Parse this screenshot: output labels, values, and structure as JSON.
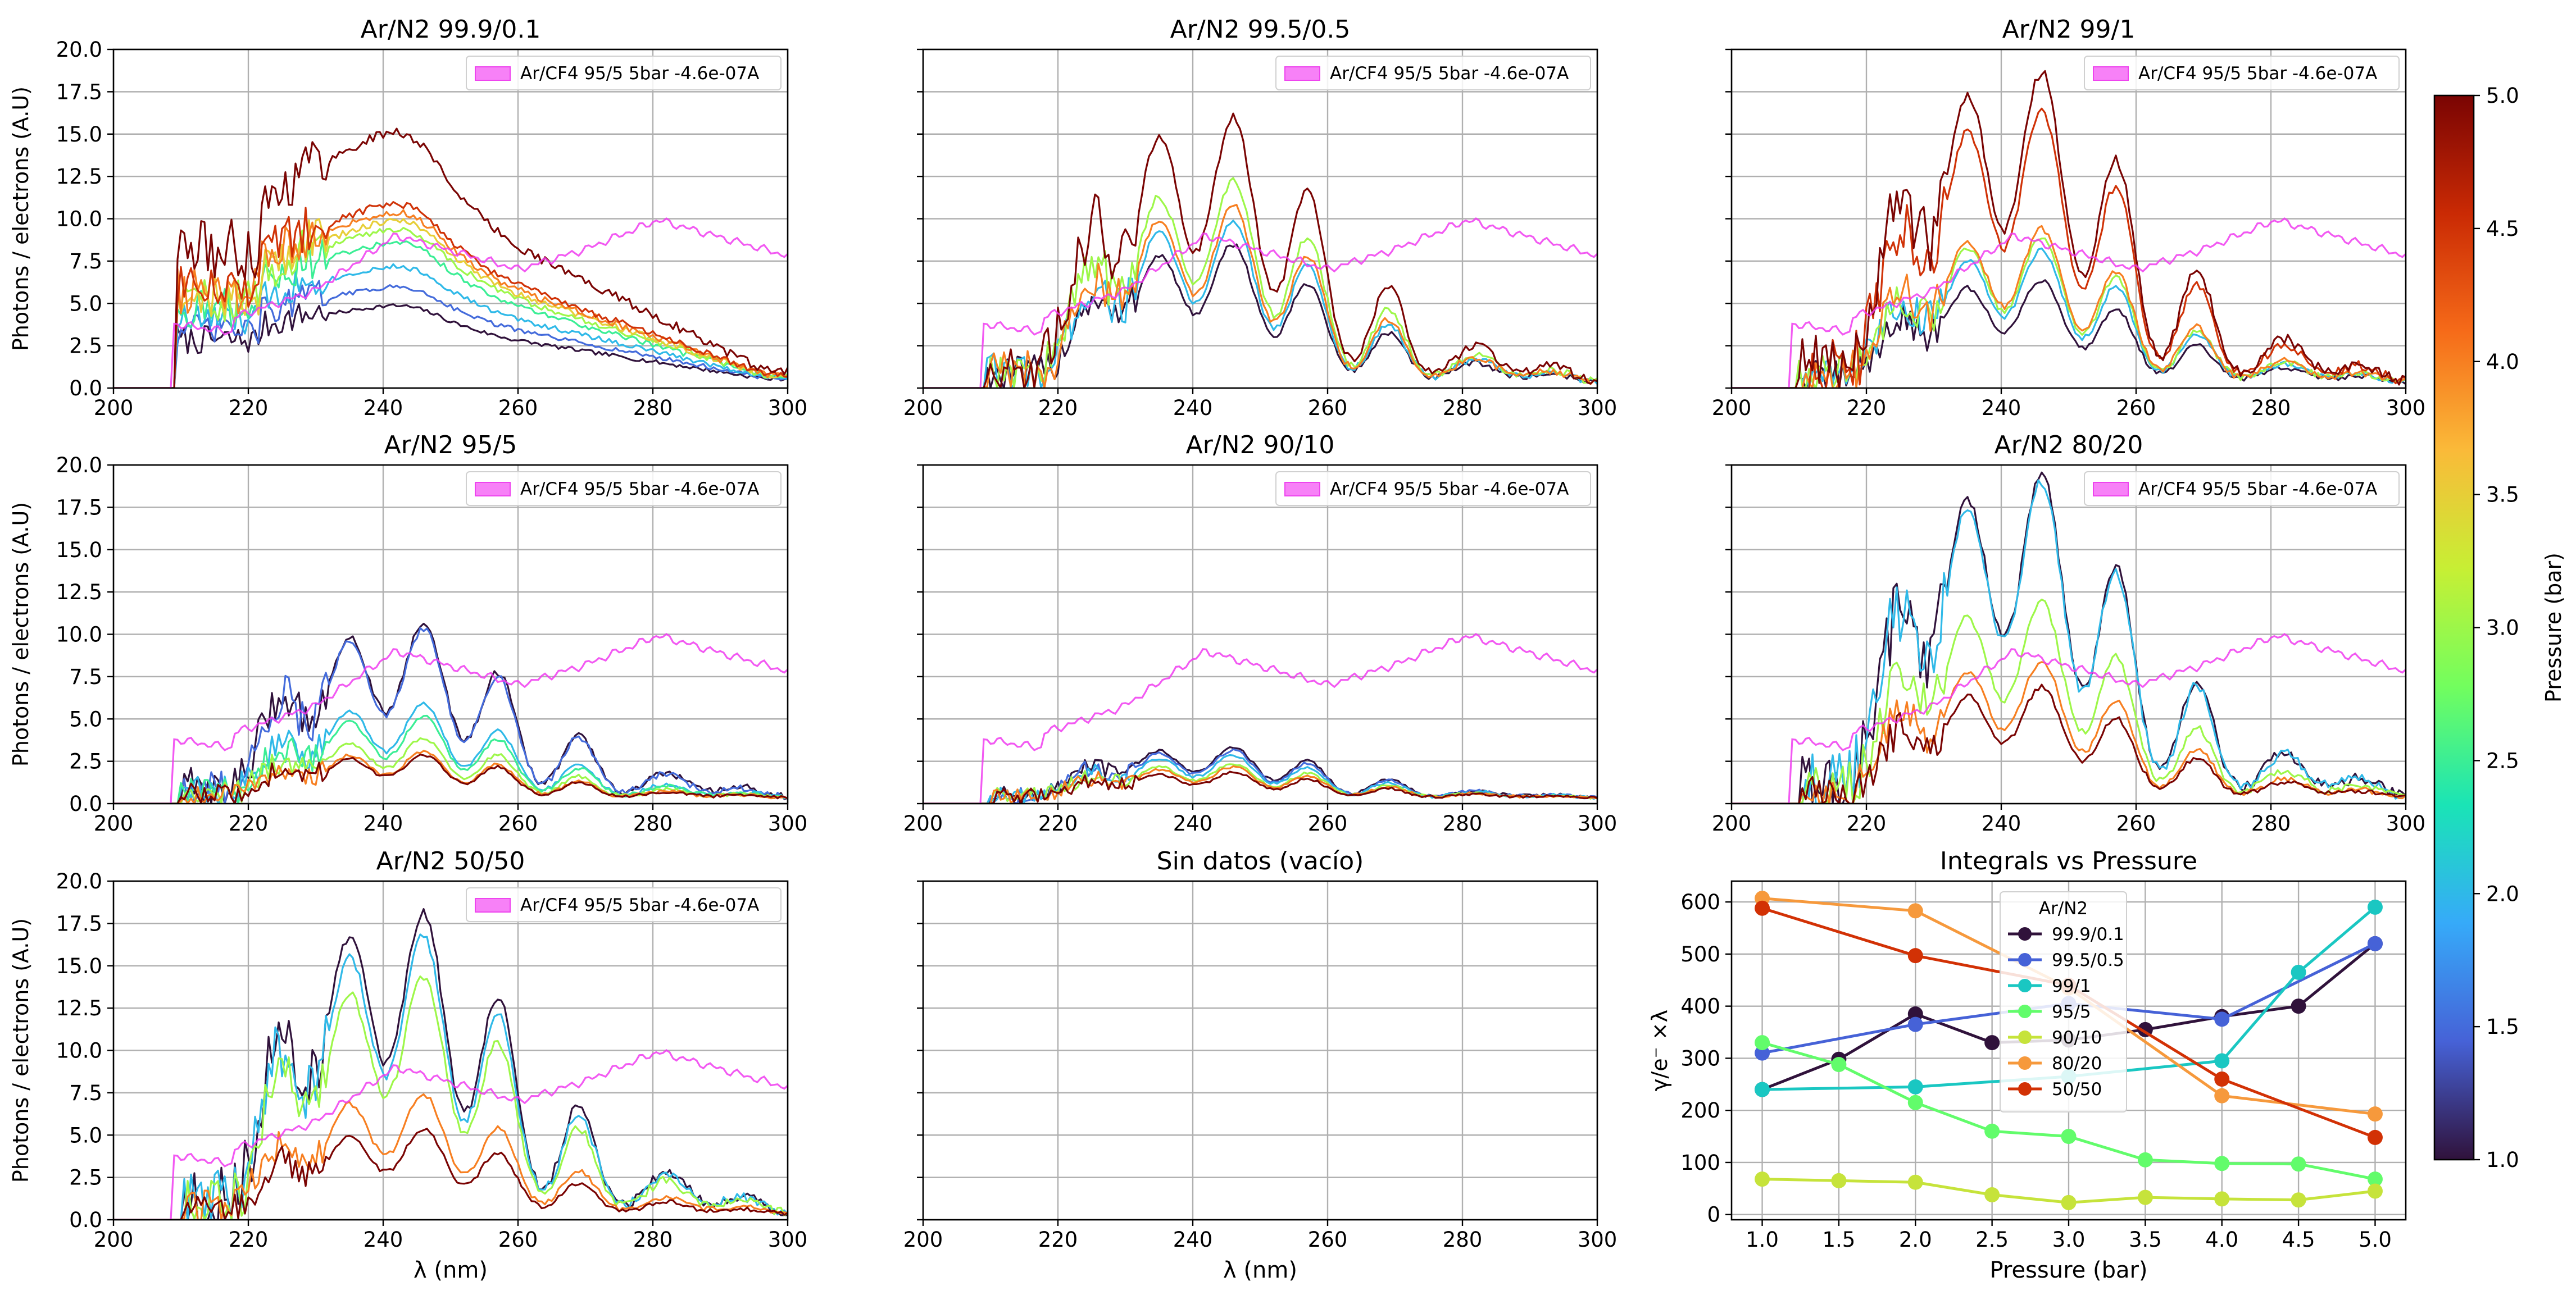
{
  "figure": {
    "spec_xlabel": "λ (nm)",
    "spec_ylabel": "Photons / electrons (A.U)",
    "spec_xticks": [
      "200",
      "220",
      "240",
      "260",
      "280",
      "300"
    ],
    "spec_yticks": [
      "0.0",
      "2.5",
      "5.0",
      "7.5",
      "10.0",
      "12.5",
      "15.0",
      "17.5",
      "20.0"
    ],
    "legend_text": "Ar/CF4 95/5 5bar -4.6e-07A",
    "colorbar": {
      "label": "Pressure (bar)",
      "ticks": [
        "1.0",
        "1.5",
        "2.0",
        "2.5",
        "3.0",
        "3.5",
        "4.0",
        "4.5",
        "5.0"
      ],
      "range": [
        1.0,
        5.0
      ],
      "colormap": [
        "#30123b",
        "#4662d7",
        "#36aaf9",
        "#1ae4b6",
        "#72fe5e",
        "#c7ef34",
        "#faba39",
        "#f66b19",
        "#ca2a04",
        "#7a0403"
      ]
    }
  },
  "chart_data": [
    {
      "type": "line",
      "title": "Ar/N2 99.9/0.1",
      "xlabel": "",
      "ylabel": "Photons / electrons (A.U)",
      "xlim": [
        200,
        300
      ],
      "ylim": [
        0,
        20
      ],
      "grid": true,
      "legend": "top-right",
      "reference": "Ar/CF4 95/5 5bar -4.6e-07A",
      "pressures": [
        1.0,
        1.5,
        2.0,
        2.5,
        3.0,
        3.5,
        4.0,
        4.5,
        5.0
      ],
      "peaks": [
        [
          230,
          4.5
        ],
        [
          235,
          5.6
        ],
        [
          240,
          6.8
        ],
        [
          245,
          8.2
        ],
        [
          250,
          9.0
        ],
        [
          255,
          9.5
        ],
        [
          260,
          10.0
        ],
        [
          265,
          10.5
        ],
        [
          270,
          14.7
        ]
      ]
    },
    {
      "type": "line",
      "title": "Ar/N2 99.5/0.5",
      "xlabel": "",
      "ylabel": "",
      "xlim": [
        200,
        300
      ],
      "ylim": [
        0,
        20
      ],
      "grid": true,
      "legend": "top-right",
      "reference": "Ar/CF4 95/5 5bar -4.6e-07A",
      "pressures": [
        1.0,
        2.0,
        3.0,
        4.0,
        5.0
      ],
      "peaks": [
        8.1,
        9.5,
        11.8,
        10.4,
        15.6
      ]
    },
    {
      "type": "line",
      "title": "Ar/N2 99/1",
      "xlabel": "",
      "ylabel": "",
      "xlim": [
        200,
        300
      ],
      "ylim": [
        0,
        20
      ],
      "grid": true,
      "legend": "top-right",
      "reference": "Ar/CF4 95/5 5bar -4.6e-07A",
      "pressures": [
        1.0,
        2.0,
        3.0,
        4.0,
        4.5,
        5.0
      ],
      "peaks": [
        6.0,
        7.8,
        8.5,
        9.0,
        16.0,
        18.2
      ]
    },
    {
      "type": "line",
      "title": "Ar/N2 95/5",
      "xlabel": "",
      "ylabel": "Photons / electrons (A.U)",
      "xlim": [
        200,
        300
      ],
      "ylim": [
        0,
        20
      ],
      "grid": true,
      "legend": "top-right",
      "reference": "Ar/CF4 95/5 5bar -4.6e-07A",
      "pressures": [
        1.0,
        1.5,
        2.0,
        2.5,
        3.0,
        4.0,
        5.0
      ],
      "peaks": [
        10.2,
        9.9,
        5.5,
        4.8,
        3.5,
        2.7,
        2.5
      ]
    },
    {
      "type": "line",
      "title": "Ar/N2 90/10",
      "xlabel": "",
      "ylabel": "",
      "xlim": [
        200,
        300
      ],
      "ylim": [
        0,
        20
      ],
      "grid": true,
      "legend": "top-right",
      "reference": "Ar/CF4 95/5 5bar -4.6e-07A",
      "pressures": [
        1.0,
        1.5,
        2.0,
        3.0,
        4.0,
        5.0
      ],
      "peaks": [
        3.0,
        2.8,
        2.5,
        2.0,
        1.8,
        1.5
      ]
    },
    {
      "type": "line",
      "title": "Ar/N2 80/20",
      "xlabel": "",
      "ylabel": "",
      "xlim": [
        200,
        300
      ],
      "ylim": [
        0,
        20
      ],
      "grid": true,
      "legend": "top-right",
      "reference": "Ar/CF4 95/5 5bar -4.6e-07A",
      "pressures": [
        1.0,
        2.0,
        3.0,
        4.0,
        5.0
      ],
      "peaks": [
        19.0,
        18.5,
        11.5,
        8.0,
        6.5
      ]
    },
    {
      "type": "line",
      "title": "Ar/N2 50/50",
      "xlabel": "λ (nm)",
      "ylabel": "Photons / electrons (A.U)",
      "xlim": [
        200,
        300
      ],
      "ylim": [
        0,
        20
      ],
      "grid": true,
      "legend": "top-right",
      "reference": "Ar/CF4 95/5 5bar -4.6e-07A",
      "pressures": [
        1.0,
        2.0,
        3.0,
        4.0,
        5.0
      ],
      "peaks": [
        17.7,
        16.3,
        14.0,
        7.0,
        5.0
      ]
    },
    {
      "type": "line",
      "title": "Sin datos (vacío)",
      "xlabel": "λ (nm)",
      "ylabel": "",
      "xlim": [
        200,
        300
      ],
      "ylim": [
        0,
        20
      ],
      "grid": true
    },
    {
      "type": "line",
      "title": "Integrals vs Pressure",
      "xlabel": "Pressure (bar)",
      "ylabel": "γ/e⁻ ×λ",
      "xlim": [
        0.8,
        5.2
      ],
      "ylim": [
        -10,
        640
      ],
      "grid": true,
      "legend": "upper-center",
      "legend_title": "Ar/N2",
      "x": [
        1.0,
        1.5,
        2.0,
        2.5,
        3.0,
        3.5,
        4.0,
        4.5,
        5.0
      ],
      "xticks": [
        "1.0",
        "1.5",
        "2.0",
        "2.5",
        "3.0",
        "3.5",
        "4.0",
        "4.5",
        "5.0"
      ],
      "yticks": [
        "0",
        "100",
        "200",
        "300",
        "400",
        "500",
        "600"
      ],
      "series": [
        {
          "name": "99.9/0.1",
          "color": "#30123b",
          "x": [
            1.0,
            1.5,
            2.0,
            2.5,
            3.0,
            3.5,
            4.0,
            4.5,
            5.0
          ],
          "values": [
            240,
            298,
            385,
            330,
            335,
            355,
            380,
            400,
            520
          ]
        },
        {
          "name": "99.5/0.5",
          "color": "#4662d7",
          "x": [
            1.0,
            2.0,
            3.0,
            4.0,
            5.0
          ],
          "values": [
            310,
            365,
            405,
            375,
            520
          ]
        },
        {
          "name": "99/1",
          "color": "#1ac7c2",
          "x": [
            1.0,
            2.0,
            3.0,
            4.0,
            4.5,
            5.0
          ],
          "values": [
            240,
            245,
            265,
            295,
            465,
            590
          ]
        },
        {
          "name": "95/5",
          "color": "#62fc6b",
          "x": [
            1.0,
            1.5,
            2.0,
            2.5,
            3.0,
            3.5,
            4.0,
            4.5,
            5.0
          ],
          "values": [
            330,
            288,
            215,
            160,
            150,
            105,
            98,
            97,
            68
          ]
        },
        {
          "name": "90/10",
          "color": "#c6e33b",
          "x": [
            1.0,
            1.5,
            2.0,
            2.5,
            3.0,
            3.5,
            4.0,
            4.5,
            5.0
          ],
          "values": [
            68,
            65,
            62,
            38,
            23,
            33,
            30,
            28,
            45
          ]
        },
        {
          "name": "80/20",
          "color": "#f6993c",
          "x": [
            1.0,
            2.0,
            3.0,
            4.0,
            5.0
          ],
          "values": [
            607,
            583,
            435,
            228,
            193
          ]
        },
        {
          "name": "50/50",
          "color": "#d23105",
          "x": [
            1.0,
            2.0,
            3.0,
            4.0,
            5.0
          ],
          "values": [
            588,
            497,
            440,
            260,
            148
          ]
        }
      ]
    }
  ]
}
